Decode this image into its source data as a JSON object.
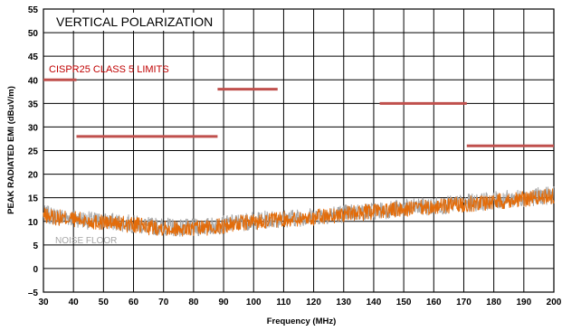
{
  "chart_data": {
    "type": "line",
    "title": "VERTICAL  POLARIZATION",
    "xlabel": "Frequency (MHz)",
    "ylabel": "PEAK RADIATED EMI (dBuV/m)",
    "xlim": [
      30,
      200
    ],
    "ylim": [
      -5,
      55
    ],
    "x_ticks": [
      30,
      40,
      50,
      60,
      70,
      80,
      90,
      100,
      110,
      120,
      130,
      140,
      150,
      160,
      170,
      180,
      190,
      200
    ],
    "y_ticks": [
      -5,
      0,
      5,
      10,
      15,
      20,
      25,
      30,
      35,
      40,
      45,
      50,
      55
    ],
    "grid": true,
    "limits_label": "CISPR25 CLASS 5 LIMITS",
    "noise_label": "NOISE FLOOR",
    "limits": [
      {
        "x_start": 30,
        "x_end": 41,
        "value": 40
      },
      {
        "x_start": 41,
        "x_end": 88,
        "value": 28
      },
      {
        "x_start": 88,
        "x_end": 108,
        "value": 38
      },
      {
        "x_start": 142,
        "x_end": 171,
        "value": 35
      },
      {
        "x_start": 171,
        "x_end": 200,
        "value": 26
      }
    ],
    "series": [
      {
        "color": "#a6a6a6",
        "role": "noise-floor",
        "x": [
          30,
          35,
          40,
          45,
          50,
          55,
          60,
          65,
          70,
          75,
          80,
          85,
          90,
          95,
          100,
          105,
          110,
          115,
          120,
          125,
          130,
          135,
          140,
          145,
          150,
          155,
          160,
          165,
          170,
          175,
          180,
          185,
          190,
          195,
          200
        ],
        "values": [
          11.5,
          11.0,
          10.8,
          10.2,
          10.0,
          9.8,
          9.4,
          9.0,
          8.9,
          8.7,
          8.6,
          8.9,
          9.3,
          9.8,
          10.1,
          10.4,
          10.6,
          10.8,
          11.0,
          11.4,
          11.7,
          12.0,
          12.2,
          12.5,
          12.8,
          13.0,
          13.2,
          13.5,
          13.8,
          14.1,
          14.4,
          14.7,
          15.0,
          15.3,
          15.6
        ]
      },
      {
        "color": "#e36c0a",
        "role": "measurement",
        "x": [
          30,
          35,
          40,
          45,
          50,
          55,
          60,
          65,
          70,
          75,
          80,
          85,
          90,
          95,
          100,
          105,
          110,
          115,
          120,
          125,
          130,
          135,
          140,
          145,
          150,
          155,
          160,
          165,
          170,
          175,
          180,
          185,
          190,
          195,
          200
        ],
        "values": [
          11.2,
          10.8,
          10.5,
          10.0,
          9.8,
          9.5,
          9.2,
          8.8,
          8.7,
          8.5,
          8.4,
          8.7,
          9.1,
          9.6,
          9.9,
          10.2,
          10.4,
          10.6,
          10.8,
          11.2,
          11.5,
          11.8,
          12.0,
          12.3,
          12.6,
          12.8,
          13.0,
          13.3,
          13.6,
          13.9,
          14.2,
          14.5,
          14.8,
          15.1,
          15.4
        ]
      }
    ]
  },
  "colors": {
    "limit_line": "#c0504d",
    "limits_text": "#c00000",
    "noise_text": "#a6a6a6",
    "grid": "#000000"
  }
}
